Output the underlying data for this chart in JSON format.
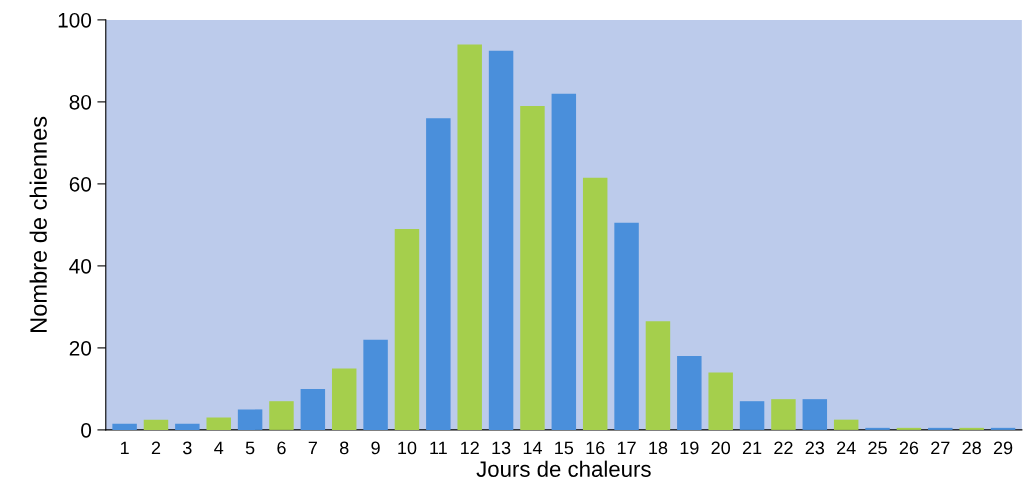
{
  "chart_data": {
    "type": "bar",
    "xlabel": "Jours de chaleurs",
    "ylabel": "Nombre de chiennes",
    "categories": [
      "1",
      "2",
      "3",
      "4",
      "5",
      "6",
      "7",
      "8",
      "9",
      "10",
      "11",
      "12",
      "13",
      "14",
      "15",
      "16",
      "17",
      "18",
      "19",
      "20",
      "21",
      "22",
      "23",
      "24",
      "25",
      "26",
      "27",
      "28",
      "29"
    ],
    "values": [
      1.5,
      2.5,
      1.5,
      3,
      5,
      7,
      10,
      15,
      22,
      49,
      76,
      94,
      92.5,
      79,
      82,
      61.5,
      50.5,
      26.5,
      18,
      14,
      7,
      7.5,
      7.5,
      2.5,
      0.5,
      0.5,
      0.5,
      0.5,
      0.5
    ],
    "colors": [
      "#4a8fdb",
      "#a5cf4c",
      "#4a8fdb",
      "#a5cf4c",
      "#4a8fdb",
      "#a5cf4c",
      "#4a8fdb",
      "#a5cf4c",
      "#4a8fdb",
      "#a5cf4c",
      "#4a8fdb",
      "#a5cf4c",
      "#4a8fdb",
      "#a5cf4c",
      "#4a8fdb",
      "#a5cf4c",
      "#4a8fdb",
      "#a5cf4c",
      "#4a8fdb",
      "#a5cf4c",
      "#4a8fdb",
      "#a5cf4c",
      "#4a8fdb",
      "#a5cf4c",
      "#4a8fdb",
      "#a5cf4c",
      "#4a8fdb",
      "#a5cf4c",
      "#4a8fdb"
    ],
    "ylim": [
      0,
      100
    ],
    "yticks": [
      0,
      20,
      40,
      60,
      80,
      100
    ],
    "grid": false,
    "legend": false
  }
}
